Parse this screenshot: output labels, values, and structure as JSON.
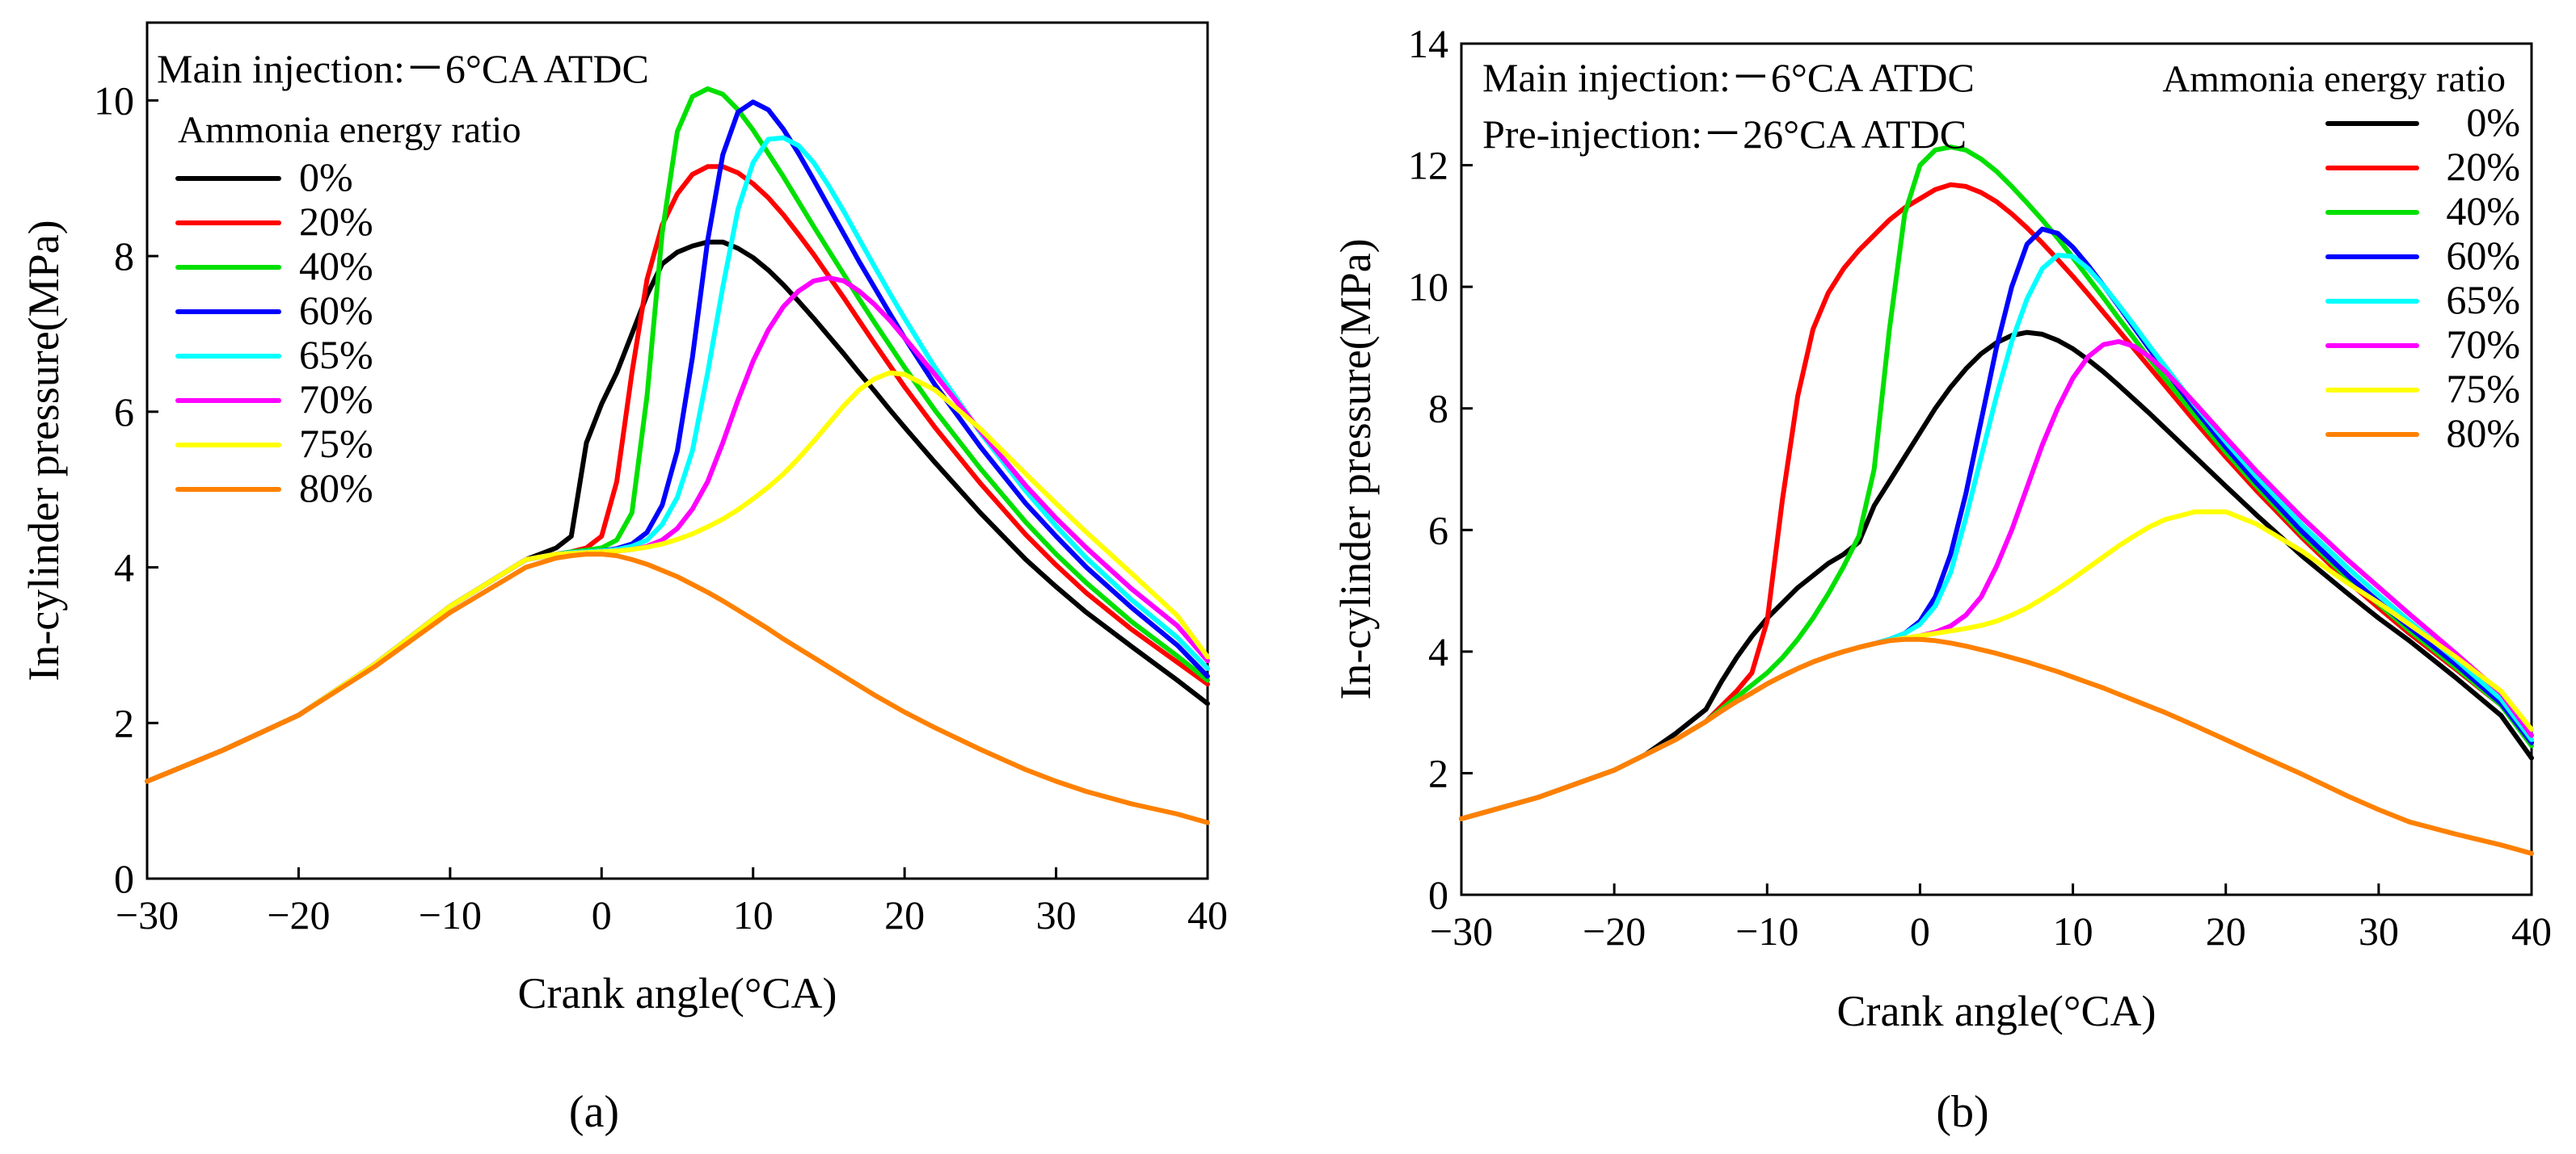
{
  "chart_data": [
    {
      "type": "line",
      "panel_label": "(a)",
      "xlabel": "Crank angle(°CA)",
      "ylabel": "In-cylinder pressure(MPa)",
      "xlim": [
        -30,
        40
      ],
      "ylim": [
        0,
        11
      ],
      "xticks": [
        -30,
        -20,
        -10,
        0,
        10,
        20,
        30,
        40
      ],
      "xtick_labels": [
        "−30",
        "−20",
        "−10",
        "0",
        "10",
        "20",
        "30",
        "40"
      ],
      "yticks": [
        0,
        2,
        4,
        6,
        8,
        10
      ],
      "ytick_labels": [
        "0",
        "2",
        "4",
        "6",
        "8",
        "10"
      ],
      "annotations": [
        "Main injection:－6°CA ATDC"
      ],
      "legend_title": "Ammonia energy ratio",
      "legend_position": "top-left",
      "x": [
        -30,
        -25,
        -20,
        -15,
        -10,
        -5,
        -3,
        -2,
        -1,
        0,
        1,
        2,
        3,
        4,
        5,
        6,
        7,
        8,
        9,
        10,
        11,
        12,
        13,
        14,
        15,
        16,
        17,
        18,
        19,
        20,
        22,
        25,
        28,
        30,
        32,
        35,
        38,
        40
      ],
      "series": [
        {
          "name": "0%",
          "color": "#000000",
          "values": [
            1.25,
            1.65,
            2.1,
            2.75,
            3.5,
            4.1,
            4.25,
            4.4,
            5.6,
            6.1,
            6.5,
            7.0,
            7.5,
            7.9,
            8.05,
            8.13,
            8.18,
            8.18,
            8.1,
            7.98,
            7.82,
            7.63,
            7.42,
            7.2,
            6.97,
            6.74,
            6.5,
            6.27,
            6.03,
            5.8,
            5.35,
            4.7,
            4.1,
            3.75,
            3.42,
            2.98,
            2.55,
            2.25
          ]
        },
        {
          "name": "20%",
          "color": "#ff0000",
          "values": [
            1.25,
            1.65,
            2.1,
            2.75,
            3.5,
            4.1,
            4.17,
            4.2,
            4.25,
            4.4,
            5.1,
            6.5,
            7.7,
            8.4,
            8.8,
            9.05,
            9.15,
            9.15,
            9.07,
            8.93,
            8.75,
            8.53,
            8.28,
            8.02,
            7.74,
            7.46,
            7.17,
            6.88,
            6.6,
            6.32,
            5.8,
            5.08,
            4.42,
            4.03,
            3.67,
            3.2,
            2.78,
            2.5
          ]
        },
        {
          "name": "40%",
          "color": "#00e000",
          "values": [
            1.25,
            1.65,
            2.1,
            2.75,
            3.5,
            4.1,
            4.17,
            4.2,
            4.22,
            4.25,
            4.35,
            4.7,
            6.2,
            8.3,
            9.6,
            10.05,
            10.15,
            10.08,
            9.88,
            9.62,
            9.32,
            9.02,
            8.7,
            8.38,
            8.07,
            7.76,
            7.45,
            7.15,
            6.86,
            6.57,
            6.02,
            5.27,
            4.58,
            4.17,
            3.8,
            3.3,
            2.86,
            2.55
          ]
        },
        {
          "name": "60%",
          "color": "#0000ff",
          "values": [
            1.25,
            1.65,
            2.1,
            2.75,
            3.5,
            4.1,
            4.17,
            4.19,
            4.2,
            4.21,
            4.24,
            4.3,
            4.45,
            4.8,
            5.5,
            6.7,
            8.2,
            9.3,
            9.85,
            9.98,
            9.88,
            9.63,
            9.32,
            8.98,
            8.63,
            8.28,
            7.93,
            7.6,
            7.27,
            6.95,
            6.35,
            5.55,
            4.82,
            4.4,
            4.0,
            3.48,
            3.0,
            2.6
          ]
        },
        {
          "name": "65%",
          "color": "#00ffff",
          "values": [
            1.25,
            1.65,
            2.1,
            2.75,
            3.5,
            4.1,
            4.17,
            4.19,
            4.2,
            4.21,
            4.23,
            4.27,
            4.35,
            4.55,
            4.9,
            5.5,
            6.5,
            7.6,
            8.6,
            9.2,
            9.5,
            9.52,
            9.42,
            9.2,
            8.9,
            8.57,
            8.22,
            7.87,
            7.53,
            7.2,
            6.57,
            5.73,
            4.98,
            4.53,
            4.12,
            3.58,
            3.1,
            2.7
          ]
        },
        {
          "name": "70%",
          "color": "#ff00ff",
          "values": [
            1.25,
            1.65,
            2.1,
            2.75,
            3.5,
            4.1,
            4.17,
            4.18,
            4.19,
            4.2,
            4.21,
            4.23,
            4.27,
            4.35,
            4.5,
            4.75,
            5.1,
            5.6,
            6.15,
            6.65,
            7.05,
            7.35,
            7.55,
            7.68,
            7.72,
            7.68,
            7.55,
            7.38,
            7.18,
            6.95,
            6.48,
            5.75,
            5.05,
            4.63,
            4.25,
            3.72,
            3.25,
            2.8
          ]
        },
        {
          "name": "75%",
          "color": "#ffff00",
          "values": [
            1.25,
            1.65,
            2.1,
            2.75,
            3.5,
            4.1,
            4.17,
            4.18,
            4.19,
            4.2,
            4.21,
            4.23,
            4.26,
            4.3,
            4.36,
            4.43,
            4.52,
            4.62,
            4.74,
            4.88,
            5.03,
            5.2,
            5.4,
            5.62,
            5.85,
            6.08,
            6.28,
            6.42,
            6.5,
            6.48,
            6.28,
            5.78,
            5.2,
            4.82,
            4.45,
            3.92,
            3.38,
            2.85
          ]
        },
        {
          "name": "80%",
          "color": "#ff8000",
          "values": [
            1.25,
            1.65,
            2.1,
            2.72,
            3.42,
            4.0,
            4.12,
            4.15,
            4.17,
            4.17,
            4.15,
            4.1,
            4.04,
            3.96,
            3.88,
            3.78,
            3.68,
            3.57,
            3.45,
            3.33,
            3.21,
            3.08,
            2.96,
            2.84,
            2.72,
            2.6,
            2.48,
            2.36,
            2.25,
            2.14,
            1.94,
            1.66,
            1.4,
            1.25,
            1.12,
            0.96,
            0.83,
            0.72
          ]
        }
      ]
    },
    {
      "type": "line",
      "panel_label": "(b)",
      "xlabel": "Crank angle(°CA)",
      "ylabel": "In-cylinder pressure(MPa)",
      "xlim": [
        -30,
        40
      ],
      "ylim": [
        0,
        14
      ],
      "xticks": [
        -30,
        -20,
        -10,
        0,
        10,
        20,
        30,
        40
      ],
      "xtick_labels": [
        "−30",
        "−20",
        "−10",
        "0",
        "10",
        "20",
        "30",
        "40"
      ],
      "yticks": [
        0,
        2,
        4,
        6,
        8,
        10,
        12,
        14
      ],
      "ytick_labels": [
        "0",
        "2",
        "4",
        "6",
        "8",
        "10",
        "12",
        "14"
      ],
      "annotations": [
        "Main injection:－6°CA ATDC",
        "Pre-injection:－26°CA ATDC"
      ],
      "legend_title": "Ammonia energy ratio",
      "legend_position": "top-right",
      "x": [
        -30,
        -25,
        -20,
        -18,
        -16,
        -14,
        -13,
        -12,
        -11,
        -10,
        -9,
        -8,
        -7,
        -6,
        -5,
        -4,
        -3,
        -2,
        -1,
        0,
        1,
        2,
        3,
        4,
        5,
        6,
        7,
        8,
        9,
        10,
        11,
        12,
        13,
        14,
        15,
        16,
        18,
        20,
        22,
        25,
        28,
        30,
        32,
        35,
        38,
        40
      ],
      "series": [
        {
          "name": "0%",
          "color": "#000000",
          "values": [
            1.25,
            1.6,
            2.05,
            2.3,
            2.65,
            3.05,
            3.5,
            3.9,
            4.25,
            4.55,
            4.8,
            5.05,
            5.25,
            5.45,
            5.6,
            5.8,
            6.4,
            6.8,
            7.2,
            7.6,
            8.0,
            8.35,
            8.65,
            8.9,
            9.08,
            9.2,
            9.25,
            9.22,
            9.12,
            8.98,
            8.8,
            8.6,
            8.38,
            8.15,
            7.92,
            7.68,
            7.2,
            6.72,
            6.25,
            5.57,
            4.95,
            4.55,
            4.18,
            3.58,
            2.95,
            2.25
          ]
        },
        {
          "name": "20%",
          "color": "#ff0000",
          "values": [
            1.25,
            1.6,
            2.05,
            2.3,
            2.55,
            2.85,
            3.1,
            3.35,
            3.65,
            4.5,
            6.5,
            8.2,
            9.3,
            9.9,
            10.3,
            10.6,
            10.85,
            11.1,
            11.3,
            11.45,
            11.6,
            11.68,
            11.65,
            11.55,
            11.4,
            11.2,
            10.97,
            10.72,
            10.45,
            10.17,
            9.88,
            9.58,
            9.28,
            8.98,
            8.68,
            8.38,
            7.78,
            7.2,
            6.65,
            5.87,
            5.15,
            4.72,
            4.3,
            3.72,
            3.12,
            2.5
          ]
        },
        {
          "name": "40%",
          "color": "#00e000",
          "values": [
            1.25,
            1.6,
            2.05,
            2.3,
            2.55,
            2.85,
            3.05,
            3.25,
            3.45,
            3.65,
            3.9,
            4.2,
            4.55,
            4.95,
            5.4,
            5.9,
            7.0,
            9.3,
            11.2,
            12.0,
            12.25,
            12.3,
            12.25,
            12.1,
            11.9,
            11.65,
            11.38,
            11.1,
            10.8,
            10.48,
            10.15,
            9.82,
            9.48,
            9.15,
            8.82,
            8.5,
            7.88,
            7.28,
            6.72,
            5.92,
            5.2,
            4.78,
            4.35,
            3.75,
            3.12,
            2.45
          ]
        },
        {
          "name": "60%",
          "color": "#0000ff",
          "values": [
            1.25,
            1.6,
            2.05,
            2.3,
            2.55,
            2.85,
            3.02,
            3.18,
            3.32,
            3.47,
            3.6,
            3.72,
            3.83,
            3.92,
            4.0,
            4.07,
            4.13,
            4.2,
            4.3,
            4.5,
            4.9,
            5.6,
            6.6,
            7.8,
            9.0,
            10.0,
            10.7,
            10.95,
            10.88,
            10.65,
            10.35,
            10.02,
            9.68,
            9.33,
            8.98,
            8.64,
            7.98,
            7.36,
            6.78,
            5.97,
            5.25,
            4.82,
            4.4,
            3.8,
            3.15,
            2.5
          ]
        },
        {
          "name": "65%",
          "color": "#00ffff",
          "values": [
            1.25,
            1.6,
            2.05,
            2.3,
            2.55,
            2.85,
            3.02,
            3.18,
            3.32,
            3.47,
            3.6,
            3.72,
            3.83,
            3.92,
            4.0,
            4.07,
            4.13,
            4.2,
            4.3,
            4.45,
            4.75,
            5.3,
            6.2,
            7.2,
            8.2,
            9.1,
            9.8,
            10.3,
            10.52,
            10.5,
            10.3,
            10.02,
            9.7,
            9.37,
            9.03,
            8.7,
            8.05,
            7.45,
            6.88,
            6.08,
            5.37,
            4.93,
            4.5,
            3.88,
            3.22,
            2.55
          ]
        },
        {
          "name": "70%",
          "color": "#ff00ff",
          "values": [
            1.25,
            1.6,
            2.05,
            2.3,
            2.55,
            2.85,
            3.02,
            3.18,
            3.32,
            3.47,
            3.6,
            3.72,
            3.83,
            3.92,
            4.0,
            4.07,
            4.13,
            4.18,
            4.22,
            4.26,
            4.32,
            4.42,
            4.6,
            4.9,
            5.4,
            6.0,
            6.7,
            7.4,
            8.0,
            8.5,
            8.85,
            9.05,
            9.1,
            9.02,
            8.85,
            8.62,
            8.08,
            7.52,
            6.97,
            6.2,
            5.5,
            5.06,
            4.62,
            3.98,
            3.32,
            2.62
          ]
        },
        {
          "name": "75%",
          "color": "#ffff00",
          "values": [
            1.25,
            1.6,
            2.05,
            2.3,
            2.55,
            2.85,
            3.02,
            3.18,
            3.32,
            3.47,
            3.6,
            3.72,
            3.83,
            3.92,
            4.0,
            4.07,
            4.13,
            4.18,
            4.22,
            4.26,
            4.3,
            4.34,
            4.38,
            4.43,
            4.5,
            4.6,
            4.72,
            4.87,
            5.03,
            5.2,
            5.38,
            5.56,
            5.74,
            5.9,
            6.05,
            6.17,
            6.3,
            6.3,
            6.1,
            5.65,
            5.12,
            4.8,
            4.45,
            3.92,
            3.35,
            2.72
          ]
        },
        {
          "name": "80%",
          "color": "#ff8000",
          "values": [
            1.25,
            1.6,
            2.05,
            2.3,
            2.55,
            2.85,
            3.02,
            3.18,
            3.32,
            3.47,
            3.6,
            3.72,
            3.83,
            3.92,
            4.0,
            4.07,
            4.13,
            4.18,
            4.2,
            4.2,
            4.18,
            4.14,
            4.09,
            4.03,
            3.97,
            3.9,
            3.83,
            3.75,
            3.67,
            3.58,
            3.49,
            3.4,
            3.3,
            3.2,
            3.1,
            3.0,
            2.78,
            2.55,
            2.32,
            1.98,
            1.62,
            1.4,
            1.2,
            1.0,
            0.82,
            0.68
          ]
        }
      ]
    }
  ]
}
